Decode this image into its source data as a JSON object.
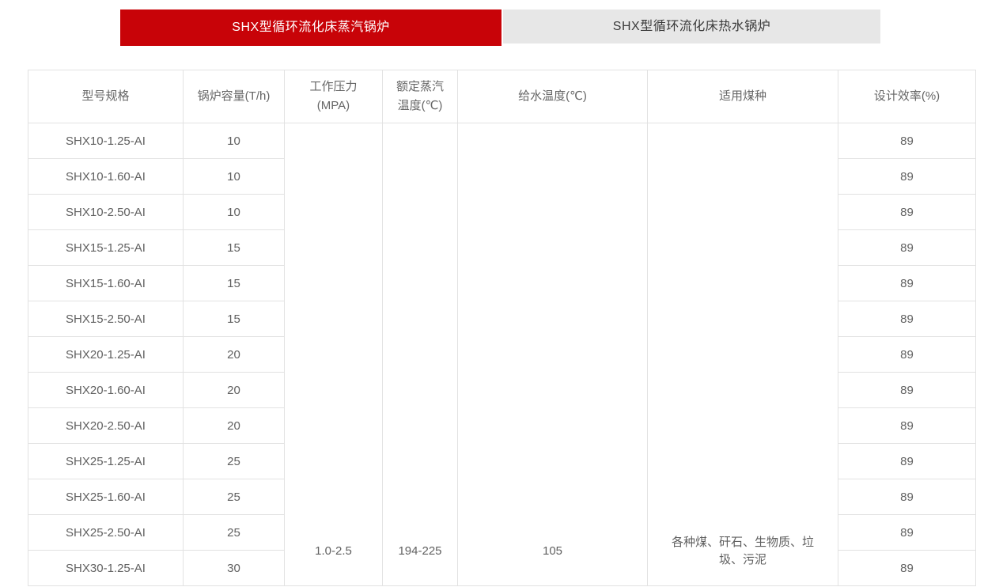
{
  "colors": {
    "accent_red": "#c80308",
    "inactive_tab_bg": "#e7e7e7",
    "table_border": "#e2e2e2",
    "table_text": "#606060"
  },
  "tabs": {
    "steam_boiler": {
      "label": "SHX型循环流化床蒸汽锅炉",
      "active": true
    },
    "hot_water_boiler": {
      "label": "SHX型循环流化床热水锅炉",
      "active": false
    }
  },
  "table": {
    "headers": [
      "型号规格",
      "锅炉容量(T/h)",
      "工作压力\n(MPA)",
      "额定蒸汽\n温度(℃)",
      "给水温度(℃)",
      "适用煤种",
      "设计效率(%)"
    ],
    "merged": {
      "working_pressure": "1.0-2.5",
      "rated_steam_temperature": "194-225",
      "feed_water_temperature": "105",
      "applicable_coal_types": "各种煤、矸石、生物质、垃圾、污泥"
    },
    "rows": [
      {
        "model": "SHX10-1.25-AI",
        "capacity": "10",
        "efficiency": "89"
      },
      {
        "model": "SHX10-1.60-AI",
        "capacity": "10",
        "efficiency": "89"
      },
      {
        "model": "SHX10-2.50-AI",
        "capacity": "10",
        "efficiency": "89"
      },
      {
        "model": "SHX15-1.25-AI",
        "capacity": "15",
        "efficiency": "89"
      },
      {
        "model": "SHX15-1.60-AI",
        "capacity": "15",
        "efficiency": "89"
      },
      {
        "model": "SHX15-2.50-AI",
        "capacity": "15",
        "efficiency": "89"
      },
      {
        "model": "SHX20-1.25-AI",
        "capacity": "20",
        "efficiency": "89"
      },
      {
        "model": "SHX20-1.60-AI",
        "capacity": "20",
        "efficiency": "89"
      },
      {
        "model": "SHX20-2.50-AI",
        "capacity": "20",
        "efficiency": "89"
      },
      {
        "model": "SHX25-1.25-AI",
        "capacity": "25",
        "efficiency": "89"
      },
      {
        "model": "SHX25-1.60-AI",
        "capacity": "25",
        "efficiency": "89"
      },
      {
        "model": "SHX25-2.50-AI",
        "capacity": "25",
        "efficiency": "89"
      },
      {
        "model": "SHX30-1.25-AI",
        "capacity": "30",
        "efficiency": "89"
      }
    ]
  }
}
